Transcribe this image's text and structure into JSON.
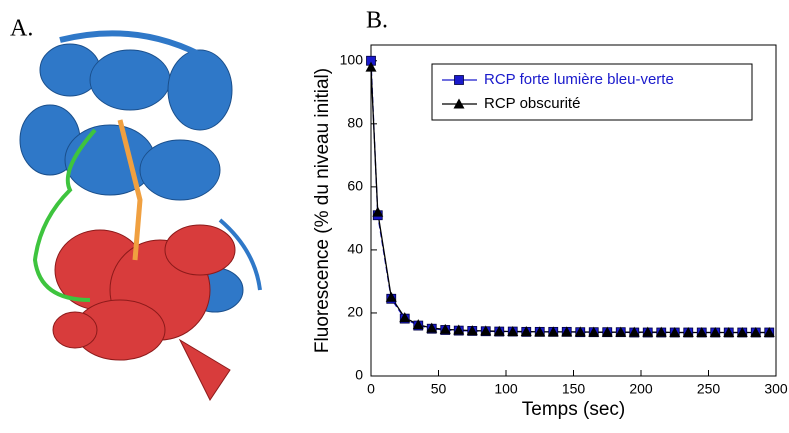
{
  "panels": [
    "A.",
    "B."
  ],
  "chart_data": {
    "type": "line",
    "x_label": "Temps (sec)",
    "y_label": "Fluorescence (% du niveau initial)",
    "x": [
      0,
      5,
      15,
      25,
      35,
      45,
      55,
      65,
      75,
      85,
      95,
      105,
      115,
      125,
      135,
      145,
      155,
      165,
      175,
      185,
      195,
      205,
      215,
      225,
      235,
      245,
      255,
      265,
      275,
      285,
      295
    ],
    "series": [
      {
        "name": "RCP forte lumière bleu-verte",
        "color": "#1a1acc",
        "marker": "square",
        "values": [
          100,
          51,
          24.5,
          18.2,
          16,
          15,
          14.6,
          14.4,
          14.3,
          14.2,
          14.1,
          14.1,
          14,
          14,
          14,
          14,
          13.9,
          13.9,
          13.9,
          13.9,
          13.8,
          13.8,
          13.8,
          13.8,
          13.8,
          13.8,
          13.8,
          13.8,
          13.8,
          13.8,
          13.8
        ]
      },
      {
        "name": "RCP obscurité",
        "color": "#000000",
        "marker": "triangle",
        "values": [
          98,
          52,
          25,
          18.5,
          16.3,
          15.2,
          14.8,
          14.6,
          14.4,
          14.3,
          14.2,
          14.1,
          14.1,
          14,
          14,
          14,
          14,
          13.9,
          13.9,
          13.9,
          13.9,
          13.9,
          13.9,
          13.8,
          13.8,
          13.8,
          13.8,
          13.8,
          13.8,
          13.8,
          13.8
        ]
      }
    ],
    "xlim": [
      0,
      300
    ],
    "xticks": [
      0,
      50,
      100,
      150,
      200,
      250,
      300
    ],
    "ylim": [
      0,
      105
    ],
    "yticks": [
      0,
      20,
      40,
      60,
      80,
      100
    ],
    "legend": "top-right",
    "grid": false
  }
}
